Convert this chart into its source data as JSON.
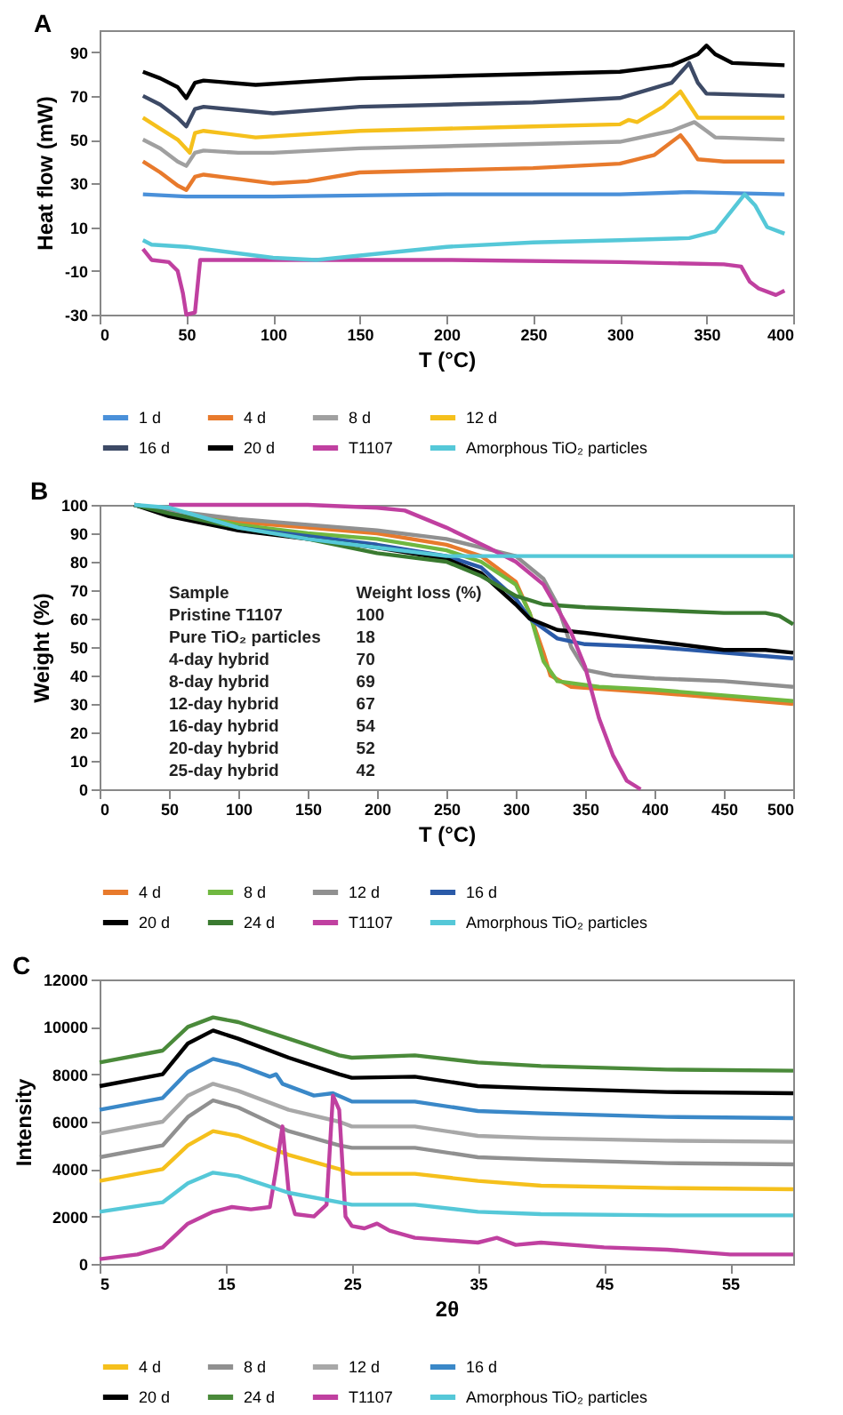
{
  "chart_data": [
    {
      "type": "line",
      "title": "A",
      "xlabel": "T (°C)",
      "ylabel": "Heat flow (mW)",
      "xlim": [
        0,
        400
      ],
      "xticks": [
        0,
        50,
        100,
        150,
        200,
        250,
        300,
        350,
        400
      ],
      "ylim": [
        -30,
        100
      ],
      "yticks": [
        -30,
        -10,
        10,
        30,
        50,
        70,
        90
      ],
      "grid": false,
      "legend": "bottom",
      "marker": "none",
      "line_style": "solid",
      "series": [
        {
          "name": "1 d",
          "color": "#4a90d9",
          "x": [
            25,
            50,
            100,
            200,
            300,
            340,
            395
          ],
          "values": [
            25,
            24,
            24,
            25,
            25,
            26,
            25
          ]
        },
        {
          "name": "4 d",
          "color": "#e87a2c",
          "x": [
            25,
            35,
            45,
            50,
            55,
            60,
            80,
            100,
            120,
            150,
            200,
            250,
            300,
            320,
            335,
            340,
            345,
            360,
            395
          ],
          "values": [
            40,
            35,
            29,
            27,
            33,
            34,
            32,
            30,
            31,
            35,
            36,
            37,
            39,
            43,
            52,
            47,
            41,
            40,
            40
          ]
        },
        {
          "name": "8 d",
          "color": "#a0a0a0",
          "x": [
            25,
            35,
            45,
            50,
            55,
            60,
            80,
            100,
            150,
            200,
            250,
            300,
            330,
            343,
            350,
            355,
            395
          ],
          "values": [
            50,
            46,
            40,
            38,
            44,
            45,
            44,
            44,
            46,
            47,
            48,
            49,
            54,
            58,
            54,
            51,
            50
          ]
        },
        {
          "name": "12 d",
          "color": "#f5c01c",
          "x": [
            25,
            35,
            45,
            52,
            55,
            60,
            90,
            150,
            200,
            250,
            300,
            305,
            310,
            325,
            335,
            340,
            345,
            395
          ],
          "values": [
            60,
            55,
            50,
            44,
            53,
            54,
            51,
            54,
            55,
            56,
            57,
            59,
            58,
            65,
            72,
            66,
            60,
            60
          ]
        },
        {
          "name": "16 d",
          "color": "#3d4a66",
          "x": [
            25,
            35,
            45,
            50,
            55,
            60,
            100,
            150,
            200,
            250,
            300,
            330,
            340,
            345,
            350,
            395
          ],
          "values": [
            70,
            66,
            60,
            56,
            64,
            65,
            62,
            65,
            66,
            67,
            69,
            76,
            85,
            76,
            71,
            70
          ]
        },
        {
          "name": "20 d",
          "color": "#000000",
          "x": [
            25,
            35,
            45,
            50,
            55,
            60,
            90,
            150,
            200,
            250,
            300,
            330,
            345,
            350,
            355,
            365,
            395
          ],
          "values": [
            81,
            78,
            74,
            69,
            76,
            77,
            75,
            78,
            79,
            80,
            81,
            84,
            89,
            93,
            89,
            85,
            84
          ]
        },
        {
          "name": "T1107",
          "color": "#c040a0",
          "x": [
            25,
            30,
            40,
            45,
            48,
            50,
            55,
            58,
            100,
            200,
            300,
            360,
            370,
            375,
            380,
            390,
            395
          ],
          "values": [
            0,
            -5,
            -6,
            -10,
            -20,
            -30,
            -29,
            -5,
            -5,
            -5,
            -6,
            -7,
            -8,
            -15,
            -18,
            -21,
            -19
          ]
        },
        {
          "name": "Amorphous TiO₂ particles",
          "color": "#55c8d8",
          "x": [
            25,
            30,
            50,
            100,
            125,
            150,
            200,
            250,
            300,
            340,
            355,
            365,
            372,
            378,
            385,
            395
          ],
          "values": [
            4,
            2,
            1,
            -4,
            -5,
            -3,
            1,
            3,
            4,
            5,
            8,
            18,
            25,
            20,
            10,
            7
          ]
        }
      ]
    },
    {
      "type": "line",
      "title": "B",
      "xlabel": "T (°C)",
      "ylabel": "Weight (%)",
      "xlim": [
        0,
        500
      ],
      "xticks": [
        0,
        50,
        100,
        150,
        200,
        250,
        300,
        350,
        400,
        450,
        500
      ],
      "ylim": [
        0,
        100
      ],
      "yticks": [
        0,
        10,
        20,
        30,
        40,
        50,
        60,
        70,
        80,
        90,
        100
      ],
      "grid": false,
      "legend": "bottom",
      "marker": "none",
      "line_style": "solid",
      "annotations": [
        "Sample",
        "Weight loss (%)",
        "Pristine T1107",
        "100",
        "Pure TiO₂ particles",
        "18",
        "4-day hybrid",
        "70",
        "8-day hybrid",
        "69",
        "12-day hybrid",
        "67",
        "16-day hybrid",
        "54",
        "20-day hybrid",
        "52",
        "25-day hybrid",
        "42"
      ],
      "series": [
        {
          "name": "4 d",
          "color": "#e87a2c",
          "x": [
            25,
            50,
            100,
            150,
            200,
            250,
            275,
            300,
            310,
            320,
            325,
            340,
            400,
            450,
            500
          ],
          "values": [
            100,
            98,
            94,
            92,
            90,
            86,
            82,
            73,
            62,
            48,
            40,
            36,
            34,
            32,
            30
          ]
        },
        {
          "name": "8 d",
          "color": "#70b840",
          "x": [
            25,
            50,
            100,
            150,
            200,
            250,
            275,
            300,
            310,
            320,
            330,
            360,
            400,
            450,
            500
          ],
          "values": [
            100,
            98,
            93,
            90,
            88,
            84,
            80,
            72,
            62,
            45,
            38,
            36,
            35,
            33,
            31
          ]
        },
        {
          "name": "12 d",
          "color": "#909090",
          "x": [
            25,
            50,
            100,
            150,
            200,
            250,
            300,
            320,
            330,
            340,
            350,
            370,
            400,
            450,
            500
          ],
          "values": [
            100,
            98,
            95,
            93,
            91,
            88,
            82,
            74,
            65,
            50,
            42,
            40,
            39,
            38,
            36
          ]
        },
        {
          "name": "16 d",
          "color": "#2a5aa8",
          "x": [
            25,
            50,
            100,
            150,
            200,
            250,
            275,
            300,
            310,
            330,
            350,
            400,
            450,
            500
          ],
          "values": [
            100,
            97,
            92,
            89,
            86,
            82,
            78,
            67,
            60,
            53,
            51,
            50,
            48,
            46
          ]
        },
        {
          "name": "20 d",
          "color": "#000000",
          "x": [
            25,
            50,
            100,
            150,
            200,
            250,
            275,
            300,
            310,
            330,
            350,
            400,
            450,
            480,
            500
          ],
          "values": [
            100,
            96,
            91,
            88,
            85,
            81,
            76,
            65,
            60,
            56,
            55,
            52,
            49,
            49,
            48
          ]
        },
        {
          "name": "24 d",
          "color": "#3a7a30",
          "x": [
            25,
            50,
            100,
            150,
            200,
            250,
            275,
            300,
            320,
            350,
            400,
            450,
            480,
            490,
            500
          ],
          "values": [
            100,
            97,
            92,
            88,
            83,
            80,
            75,
            68,
            65,
            64,
            63,
            62,
            62,
            61,
            58
          ]
        },
        {
          "name": "T1107",
          "color": "#c040a0",
          "x": [
            50,
            150,
            200,
            220,
            250,
            280,
            300,
            320,
            340,
            350,
            360,
            370,
            380,
            390
          ],
          "values": [
            100,
            100,
            99,
            98,
            92,
            85,
            80,
            72,
            55,
            43,
            25,
            12,
            3,
            0
          ]
        },
        {
          "name": "Amorphous TiO₂ particles",
          "color": "#55c8d8",
          "x": [
            25,
            50,
            100,
            150,
            200,
            250,
            270,
            500
          ],
          "values": [
            100,
            99,
            92,
            88,
            85,
            82,
            82,
            82
          ]
        }
      ]
    },
    {
      "type": "line",
      "title": "C",
      "xlabel": "2θ",
      "ylabel": "Intensity",
      "xlim": [
        5,
        60
      ],
      "xticks": [
        5,
        15,
        25,
        35,
        45,
        55
      ],
      "ylim": [
        0,
        12000
      ],
      "yticks": [
        0,
        2000,
        4000,
        6000,
        8000,
        10000,
        12000
      ],
      "grid": false,
      "legend": "bottom",
      "marker": "none",
      "line_style": "solid",
      "series": [
        {
          "name": "4 d",
          "color": "#f5c01c",
          "x": [
            5,
            10,
            12,
            14,
            16,
            20,
            24,
            25,
            30,
            35,
            40,
            50,
            60
          ],
          "values": [
            3500,
            4000,
            5000,
            5600,
            5400,
            4600,
            4000,
            3800,
            3800,
            3500,
            3300,
            3200,
            3150
          ]
        },
        {
          "name": "8 d",
          "color": "#909090",
          "x": [
            5,
            10,
            12,
            14,
            16,
            20,
            24,
            25,
            30,
            35,
            40,
            50,
            60
          ],
          "values": [
            4500,
            5000,
            6200,
            6900,
            6600,
            5600,
            5000,
            4900,
            4900,
            4500,
            4400,
            4250,
            4200
          ]
        },
        {
          "name": "12 d",
          "color": "#a8a8a8",
          "x": [
            5,
            10,
            12,
            14,
            16,
            20,
            24,
            25,
            30,
            35,
            40,
            50,
            60
          ],
          "values": [
            5500,
            6000,
            7100,
            7600,
            7300,
            6500,
            6000,
            5800,
            5800,
            5400,
            5300,
            5200,
            5150
          ]
        },
        {
          "name": "16 d",
          "color": "#3a88c8",
          "x": [
            5,
            10,
            12,
            14,
            16,
            18.5,
            19,
            19.5,
            22,
            23.5,
            25,
            30,
            35,
            40,
            50,
            60
          ],
          "values": [
            6500,
            7000,
            8100,
            8650,
            8400,
            7900,
            8000,
            7600,
            7100,
            7200,
            6850,
            6850,
            6450,
            6350,
            6200,
            6150
          ]
        },
        {
          "name": "20 d",
          "color": "#000000",
          "x": [
            5,
            10,
            12,
            14,
            16,
            20,
            24,
            25,
            30,
            35,
            40,
            50,
            60
          ],
          "values": [
            7500,
            8000,
            9300,
            9850,
            9500,
            8700,
            8000,
            7850,
            7900,
            7500,
            7400,
            7250,
            7200
          ]
        },
        {
          "name": "24 d",
          "color": "#4a8a3a",
          "x": [
            5,
            10,
            12,
            14,
            16,
            20,
            24,
            25,
            30,
            35,
            40,
            50,
            60
          ],
          "values": [
            8500,
            9000,
            10000,
            10400,
            10200,
            9500,
            8800,
            8700,
            8800,
            8500,
            8350,
            8200,
            8150
          ]
        },
        {
          "name": "T1107",
          "color": "#c040a0",
          "x": [
            5,
            8,
            10,
            12,
            14,
            15.5,
            17,
            18.5,
            19,
            19.5,
            20,
            20.5,
            22,
            23,
            23.5,
            24,
            24.5,
            25,
            26,
            27,
            28,
            30,
            35,
            36.5,
            38,
            40,
            45,
            50,
            55,
            60
          ],
          "values": [
            200,
            400,
            700,
            1700,
            2200,
            2400,
            2300,
            2400,
            4000,
            5800,
            3000,
            2100,
            2000,
            2500,
            7100,
            6500,
            2000,
            1600,
            1500,
            1700,
            1400,
            1100,
            900,
            1100,
            800,
            900,
            700,
            600,
            400,
            400
          ]
        },
        {
          "name": "Amorphous TiO₂ particles",
          "color": "#55c8d8",
          "x": [
            5,
            10,
            12,
            14,
            16,
            20,
            24,
            25,
            30,
            35,
            40,
            50,
            60
          ],
          "values": [
            2200,
            2600,
            3400,
            3850,
            3700,
            3000,
            2600,
            2500,
            2500,
            2200,
            2100,
            2050,
            2050
          ]
        }
      ]
    }
  ]
}
